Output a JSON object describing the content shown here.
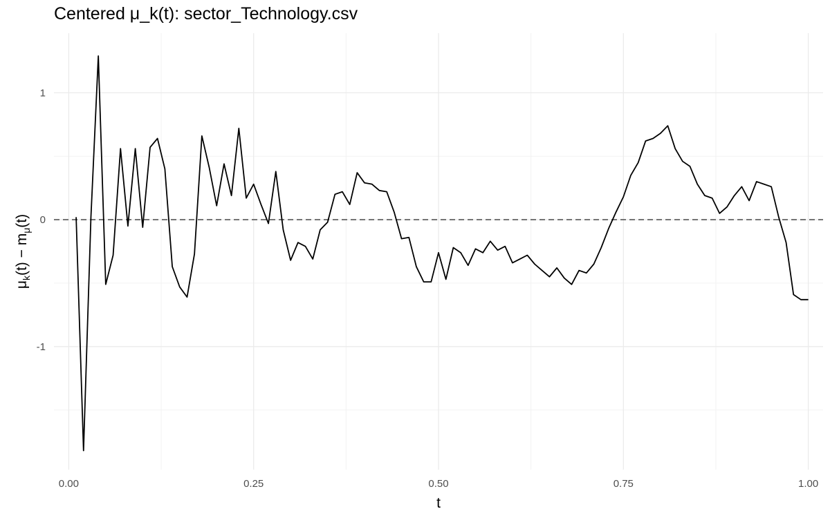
{
  "chart_data": {
    "type": "line",
    "title": "Centered μ_k(t): sector_Technology.csv",
    "xlabel": "t",
    "ylabel": {
      "text": "μk(t) − mμ(t)",
      "parts": [
        "μ",
        "k",
        "(t) − m",
        "μ",
        "(t)"
      ]
    },
    "xlim": [
      -0.02,
      1.02
    ],
    "ylim": [
      -1.97,
      1.47
    ],
    "x_ticks": [
      0.0,
      0.25,
      0.5,
      0.75,
      1.0
    ],
    "x_tick_labels": [
      "0.00",
      "0.25",
      "0.50",
      "0.75",
      "1.00"
    ],
    "y_ticks": [
      -1,
      0,
      1
    ],
    "y_tick_labels": [
      "-1",
      "0",
      "1"
    ],
    "grid": true,
    "reference_line": {
      "y": 0,
      "style": "dashed"
    },
    "line_color": "#000000",
    "series": [
      {
        "x": [
          0.01,
          0.02,
          0.03,
          0.04,
          0.05,
          0.06,
          0.07,
          0.08,
          0.09,
          0.1,
          0.11,
          0.12,
          0.13,
          0.14,
          0.15,
          0.16,
          0.17,
          0.18,
          0.19,
          0.2,
          0.21,
          0.22,
          0.23,
          0.24,
          0.25,
          0.26,
          0.27,
          0.28,
          0.29,
          0.3,
          0.31,
          0.32,
          0.33,
          0.34,
          0.35,
          0.36,
          0.37,
          0.38,
          0.39,
          0.4,
          0.41,
          0.42,
          0.43,
          0.44,
          0.45,
          0.46,
          0.47,
          0.48,
          0.49,
          0.5,
          0.51,
          0.52,
          0.53,
          0.54,
          0.55,
          0.56,
          0.57,
          0.58,
          0.59,
          0.6,
          0.61,
          0.62,
          0.63,
          0.64,
          0.65,
          0.66,
          0.67,
          0.68,
          0.69,
          0.7,
          0.71,
          0.72,
          0.73,
          0.74,
          0.75,
          0.76,
          0.77,
          0.78,
          0.79,
          0.8,
          0.81,
          0.82,
          0.83,
          0.84,
          0.85,
          0.86,
          0.87,
          0.88,
          0.89,
          0.9,
          0.91,
          0.92,
          0.93,
          0.94,
          0.95,
          0.96,
          0.97,
          0.98,
          0.99,
          1.0
        ],
        "y": [
          0.02,
          -1.82,
          0.02,
          1.29,
          -0.51,
          -0.28,
          0.56,
          -0.05,
          0.56,
          -0.06,
          0.57,
          0.64,
          0.4,
          -0.37,
          -0.53,
          -0.61,
          -0.27,
          0.66,
          0.41,
          0.11,
          0.44,
          0.19,
          0.72,
          0.17,
          0.28,
          0.12,
          -0.03,
          0.38,
          -0.08,
          -0.32,
          -0.18,
          -0.21,
          -0.31,
          -0.08,
          -0.02,
          0.2,
          0.22,
          0.12,
          0.37,
          0.29,
          0.28,
          0.23,
          0.22,
          0.06,
          -0.15,
          -0.14,
          -0.37,
          -0.49,
          -0.49,
          -0.26,
          -0.47,
          -0.22,
          -0.26,
          -0.36,
          -0.23,
          -0.26,
          -0.17,
          -0.24,
          -0.21,
          -0.34,
          -0.31,
          -0.28,
          -0.35,
          -0.4,
          -0.45,
          -0.38,
          -0.46,
          -0.51,
          -0.4,
          -0.42,
          -0.35,
          -0.22,
          -0.07,
          0.06,
          0.18,
          0.35,
          0.45,
          0.62,
          0.64,
          0.68,
          0.74,
          0.56,
          0.46,
          0.42,
          0.28,
          0.19,
          0.17,
          0.05,
          0.1,
          0.19,
          0.26,
          0.15,
          0.3,
          0.28,
          0.26,
          0.02,
          -0.18,
          -0.59,
          -0.63,
          -0.63
        ]
      }
    ]
  }
}
